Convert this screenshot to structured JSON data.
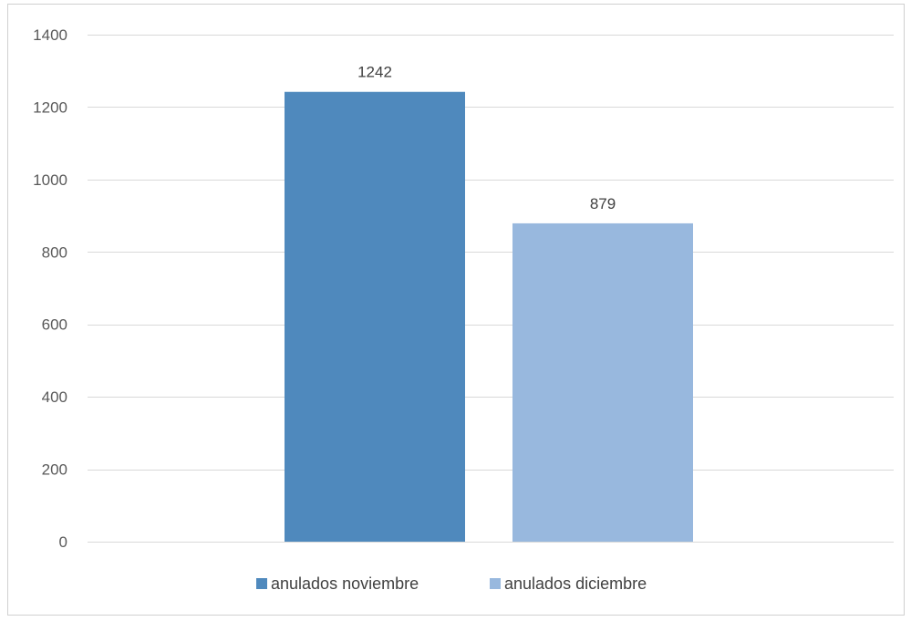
{
  "chart_data": {
    "type": "bar",
    "categories": [
      ""
    ],
    "series": [
      {
        "name": "anulados noviembre",
        "values": [
          1242
        ],
        "color": "#4f89bd"
      },
      {
        "name": "anulados diciembre",
        "values": [
          879
        ],
        "color": "#98b8de"
      }
    ],
    "ylim": [
      0,
      1400
    ],
    "yticks": [
      0,
      200,
      400,
      600,
      800,
      1000,
      1200,
      1400
    ],
    "grid": true,
    "legend_position": "bottom",
    "data_labels": true,
    "colors": {
      "gridline": "#d9d9d9",
      "axis_text": "#595959",
      "frame": "#d0d0d0"
    }
  }
}
